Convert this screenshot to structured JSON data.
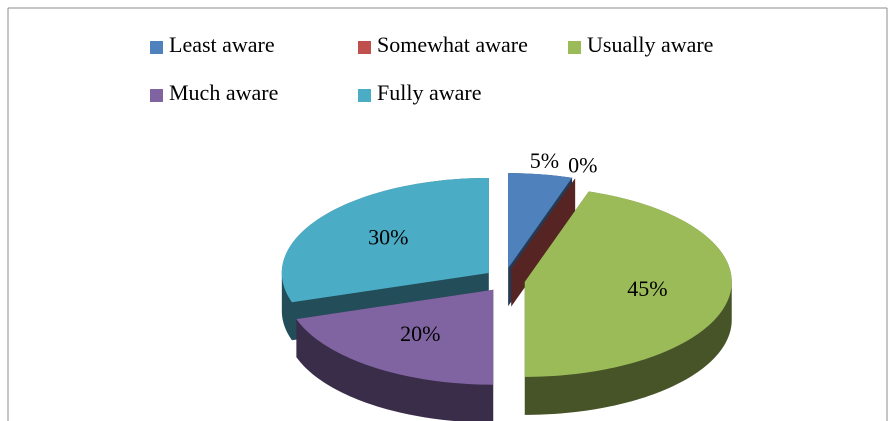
{
  "chart_data": {
    "type": "pie",
    "categories": [
      "Least aware",
      "Somewhat aware",
      "Usually aware",
      "Much aware",
      "Fully aware"
    ],
    "values": [
      5,
      0,
      45,
      20,
      30
    ],
    "value_labels": [
      "5%",
      "0%",
      "45%",
      "20%",
      "30%"
    ],
    "colors": [
      "#4f81bd",
      "#c0504d",
      "#9bbb59",
      "#8064a2",
      "#4bacc6"
    ],
    "legend": "top"
  }
}
